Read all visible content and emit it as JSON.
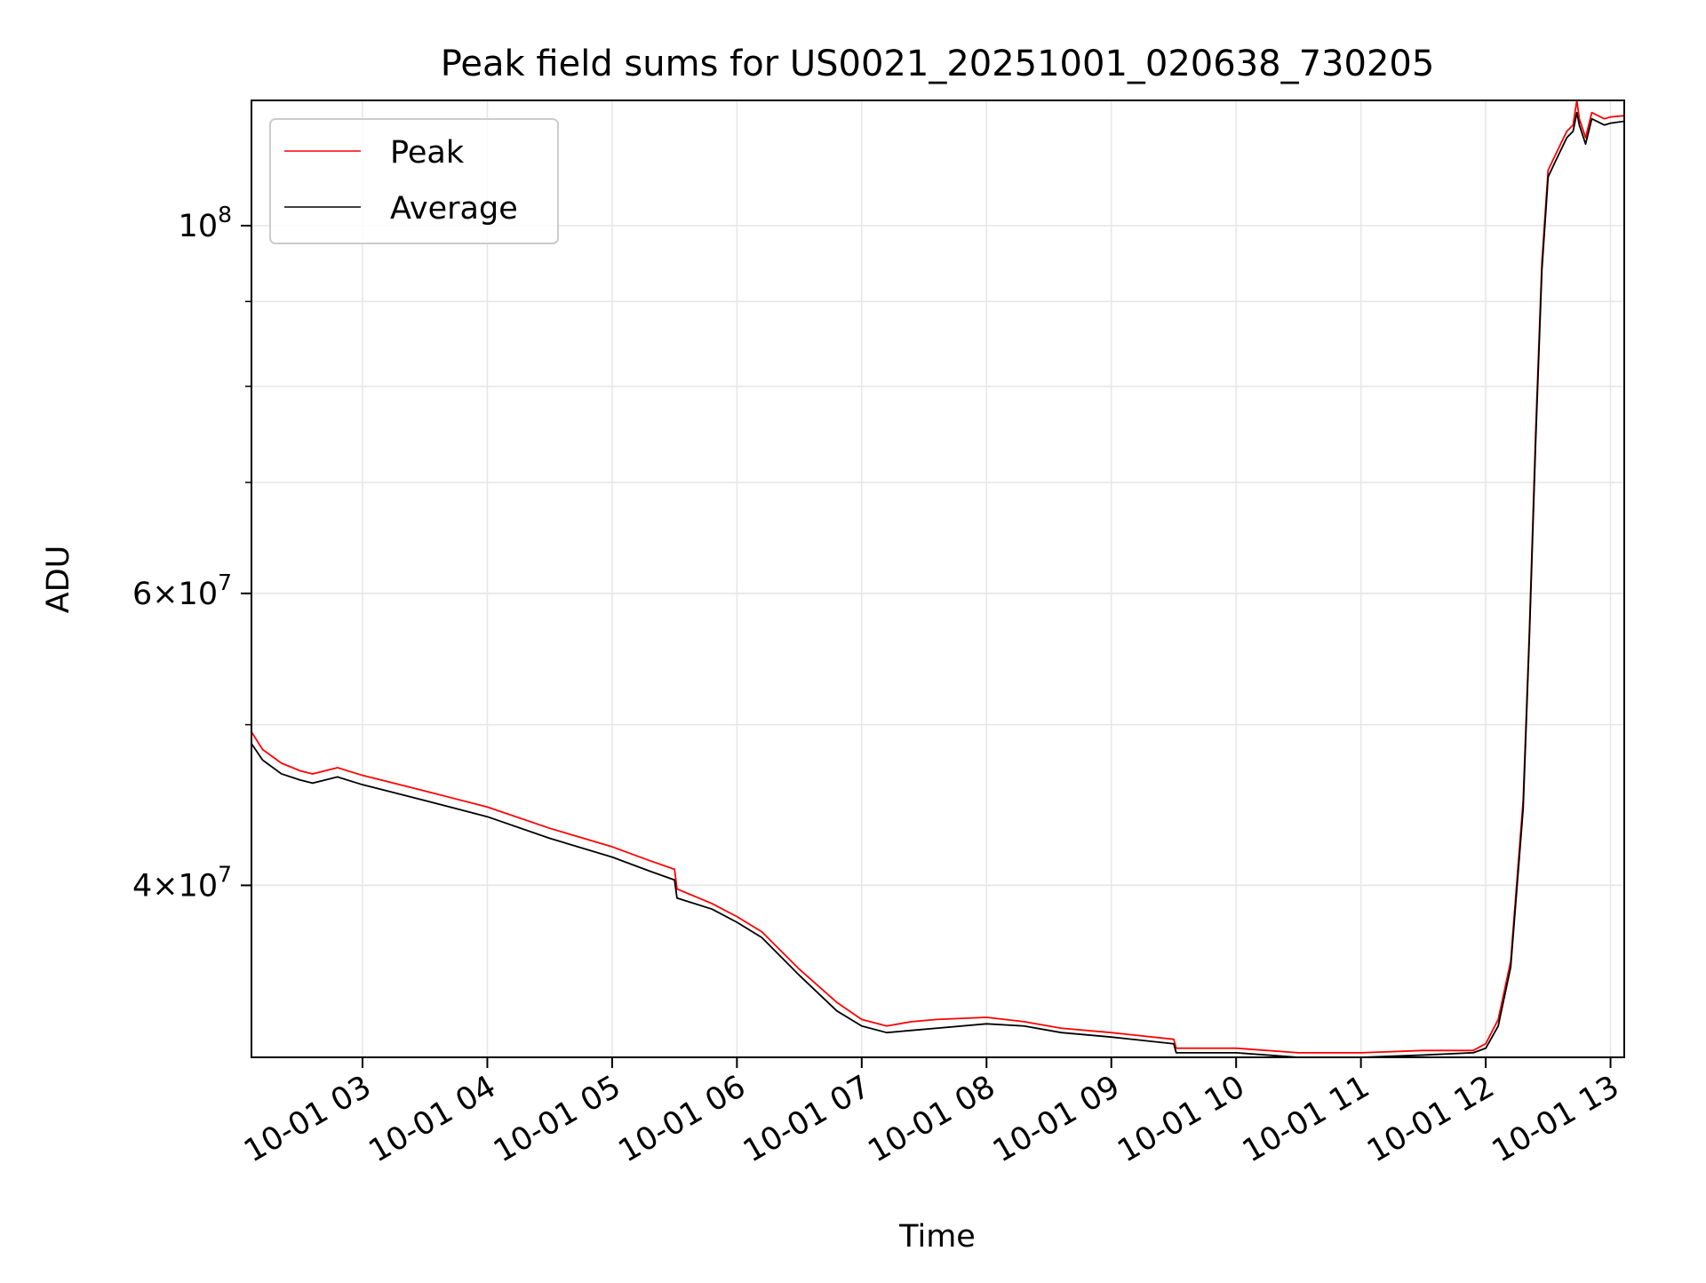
{
  "chart_data": {
    "type": "line",
    "title": "Peak field sums for US0021_20251001_020638_730205",
    "xlabel": "Time",
    "ylabel": "ADU",
    "yscale": "log",
    "xlim_hours": [
      2.11,
      13.11
    ],
    "ylim": [
      31500000,
      119000000
    ],
    "x_ticks": [
      {
        "value": 3,
        "label": "10-01 03"
      },
      {
        "value": 4,
        "label": "10-01 04"
      },
      {
        "value": 5,
        "label": "10-01 05"
      },
      {
        "value": 6,
        "label": "10-01 06"
      },
      {
        "value": 7,
        "label": "10-01 07"
      },
      {
        "value": 8,
        "label": "10-01 08"
      },
      {
        "value": 9,
        "label": "10-01 09"
      },
      {
        "value": 10,
        "label": "10-01 10"
      },
      {
        "value": 11,
        "label": "10-01 11"
      },
      {
        "value": 12,
        "label": "10-01 12"
      },
      {
        "value": 13,
        "label": "10-01 13"
      }
    ],
    "y_major_ticks": [
      {
        "value": 40000000,
        "label_mantissa": "4",
        "label_base": "10",
        "label_exp": "7"
      },
      {
        "value": 60000000,
        "label_mantissa": "6",
        "label_base": "10",
        "label_exp": "7"
      },
      {
        "value": 100000000,
        "label_mantissa": "",
        "label_base": "10",
        "label_exp": "8"
      }
    ],
    "y_minor_ticks": [
      40000000,
      50000000,
      60000000,
      70000000,
      80000000,
      90000000
    ],
    "legend": {
      "position": "upper-left",
      "entries": [
        "Peak",
        "Average"
      ]
    },
    "series": [
      {
        "name": "Peak",
        "color": "#ff0000",
        "x": [
          2.11,
          2.2,
          2.35,
          2.5,
          2.6,
          2.8,
          3.0,
          3.2,
          3.5,
          4.0,
          4.5,
          5.0,
          5.3,
          5.5,
          5.52,
          5.8,
          6.0,
          6.2,
          6.5,
          6.8,
          7.0,
          7.2,
          7.4,
          7.6,
          8.0,
          8.3,
          8.6,
          9.0,
          9.5,
          9.52,
          10.0,
          10.5,
          11.0,
          11.5,
          11.9,
          12.0,
          12.1,
          12.2,
          12.3,
          12.35,
          12.4,
          12.45,
          12.5,
          12.55,
          12.6,
          12.65,
          12.7,
          12.73,
          12.75,
          12.8,
          12.85,
          12.9,
          12.95,
          13.0,
          13.11
        ],
        "y": [
          49500000,
          48300000,
          47400000,
          46900000,
          46700000,
          47100000,
          46600000,
          46200000,
          45600000,
          44600000,
          43300000,
          42200000,
          41400000,
          40900000,
          39800000,
          39000000,
          38300000,
          37500000,
          35600000,
          34000000,
          33200000,
          32900000,
          33100000,
          33200000,
          33300000,
          33100000,
          32800000,
          32600000,
          32300000,
          31900000,
          31900000,
          31700000,
          31700000,
          31800000,
          31800000,
          32100000,
          33200000,
          36000000,
          45000000,
          57000000,
          75000000,
          95000000,
          108000000,
          110000000,
          112000000,
          114000000,
          115000000,
          119000000,
          116000000,
          113000000,
          117000000,
          116500000,
          116000000,
          116300000,
          116500000
        ]
      },
      {
        "name": "Average",
        "color": "#000000",
        "x": [
          2.11,
          2.2,
          2.35,
          2.5,
          2.6,
          2.8,
          3.0,
          3.2,
          3.5,
          4.0,
          4.5,
          5.0,
          5.3,
          5.5,
          5.52,
          5.8,
          6.0,
          6.2,
          6.5,
          6.8,
          7.0,
          7.2,
          7.4,
          7.6,
          8.0,
          8.3,
          8.6,
          9.0,
          9.5,
          9.52,
          10.0,
          10.5,
          11.0,
          11.5,
          11.9,
          12.0,
          12.1,
          12.2,
          12.3,
          12.35,
          12.4,
          12.45,
          12.5,
          12.55,
          12.6,
          12.65,
          12.7,
          12.73,
          12.75,
          12.8,
          12.85,
          12.9,
          12.95,
          13.0,
          13.11
        ],
        "y": [
          48700000,
          47600000,
          46700000,
          46300000,
          46100000,
          46500000,
          46000000,
          45600000,
          45000000,
          44000000,
          42700000,
          41600000,
          40800000,
          40300000,
          39300000,
          38700000,
          38000000,
          37200000,
          35300000,
          33600000,
          32900000,
          32600000,
          32700000,
          32800000,
          33000000,
          32900000,
          32600000,
          32400000,
          32100000,
          31700000,
          31700000,
          31500000,
          31500000,
          31600000,
          31700000,
          31900000,
          32900000,
          35700000,
          44500000,
          56500000,
          74000000,
          94000000,
          107000000,
          109000000,
          111000000,
          113000000,
          114000000,
          117000000,
          115000000,
          112000000,
          116000000,
          115500000,
          115000000,
          115300000,
          115600000
        ]
      }
    ]
  }
}
